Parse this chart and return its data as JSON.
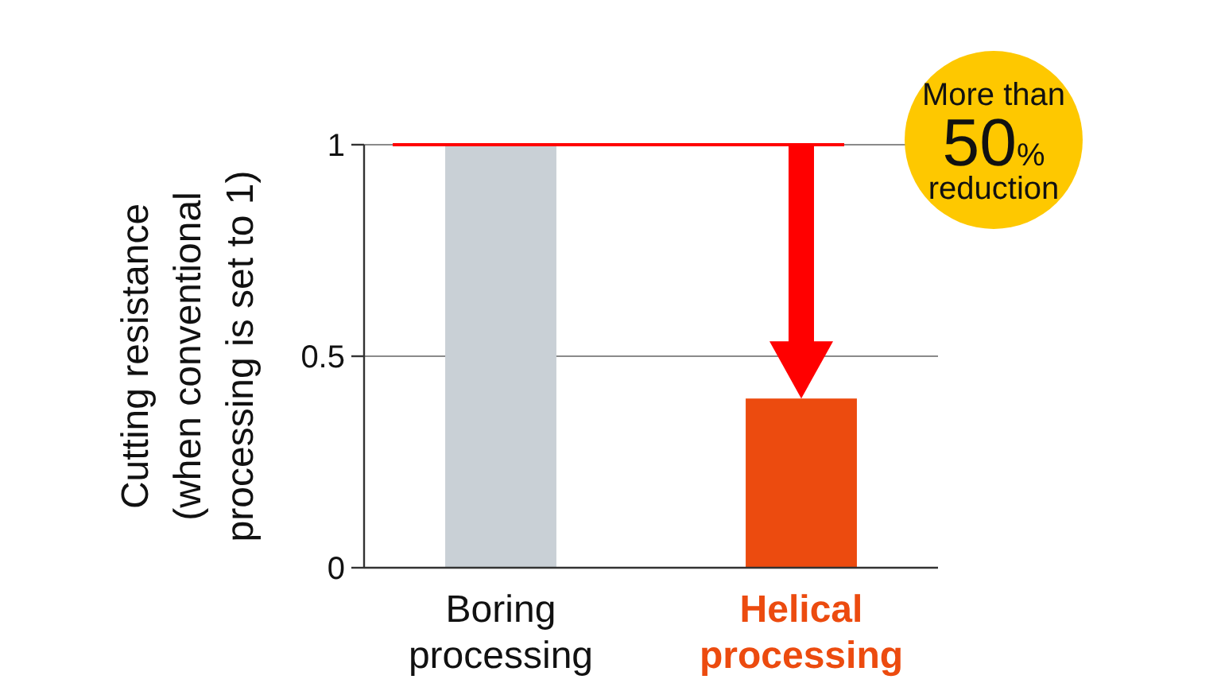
{
  "chart_data": {
    "type": "bar",
    "ylabel": "Cutting resistance (when conventional processing is set to 1)",
    "categories": [
      "Boring processing",
      "Helical processing"
    ],
    "values": [
      1,
      0.4
    ],
    "colors": [
      "#c9d0d6",
      "#ec4b0f"
    ],
    "ylim": [
      0,
      1
    ],
    "yticks": [
      0,
      0.5,
      1
    ],
    "grid": "y",
    "ref_lines": [
      {
        "axis": "y",
        "value": 1,
        "color": "#ff0000"
      }
    ],
    "annotations": [
      "More than 50% reduction"
    ]
  }
}
